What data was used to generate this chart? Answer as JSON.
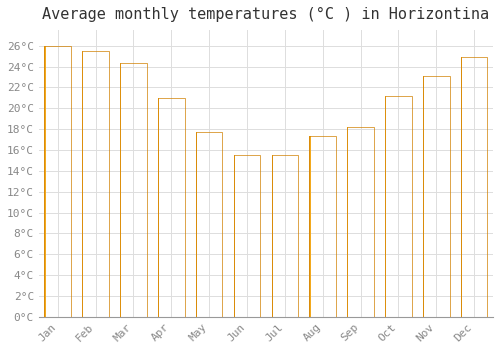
{
  "title": "Average monthly temperatures (°C ) in Horizontina",
  "months": [
    "Jan",
    "Feb",
    "Mar",
    "Apr",
    "May",
    "Jun",
    "Jul",
    "Aug",
    "Sep",
    "Oct",
    "Nov",
    "Dec"
  ],
  "values": [
    26.0,
    25.5,
    24.3,
    21.0,
    17.7,
    15.5,
    15.5,
    17.3,
    18.2,
    21.2,
    23.1,
    24.9
  ],
  "bar_color_center": "#FFB732",
  "bar_color_edge": "#F5A800",
  "bar_color_side": "#E09500",
  "background_color": "#FFFFFF",
  "grid_color": "#DDDDDD",
  "ytick_labels": [
    "0°C",
    "2°C",
    "4°C",
    "6°C",
    "8°C",
    "10°C",
    "12°C",
    "14°C",
    "16°C",
    "18°C",
    "20°C",
    "22°C",
    "24°C",
    "26°C"
  ],
  "ytick_values": [
    0,
    2,
    4,
    6,
    8,
    10,
    12,
    14,
    16,
    18,
    20,
    22,
    24,
    26
  ],
  "ylim": [
    0,
    27.5
  ],
  "title_fontsize": 11,
  "tick_fontsize": 8,
  "tick_color": "#888888",
  "title_color": "#333333"
}
